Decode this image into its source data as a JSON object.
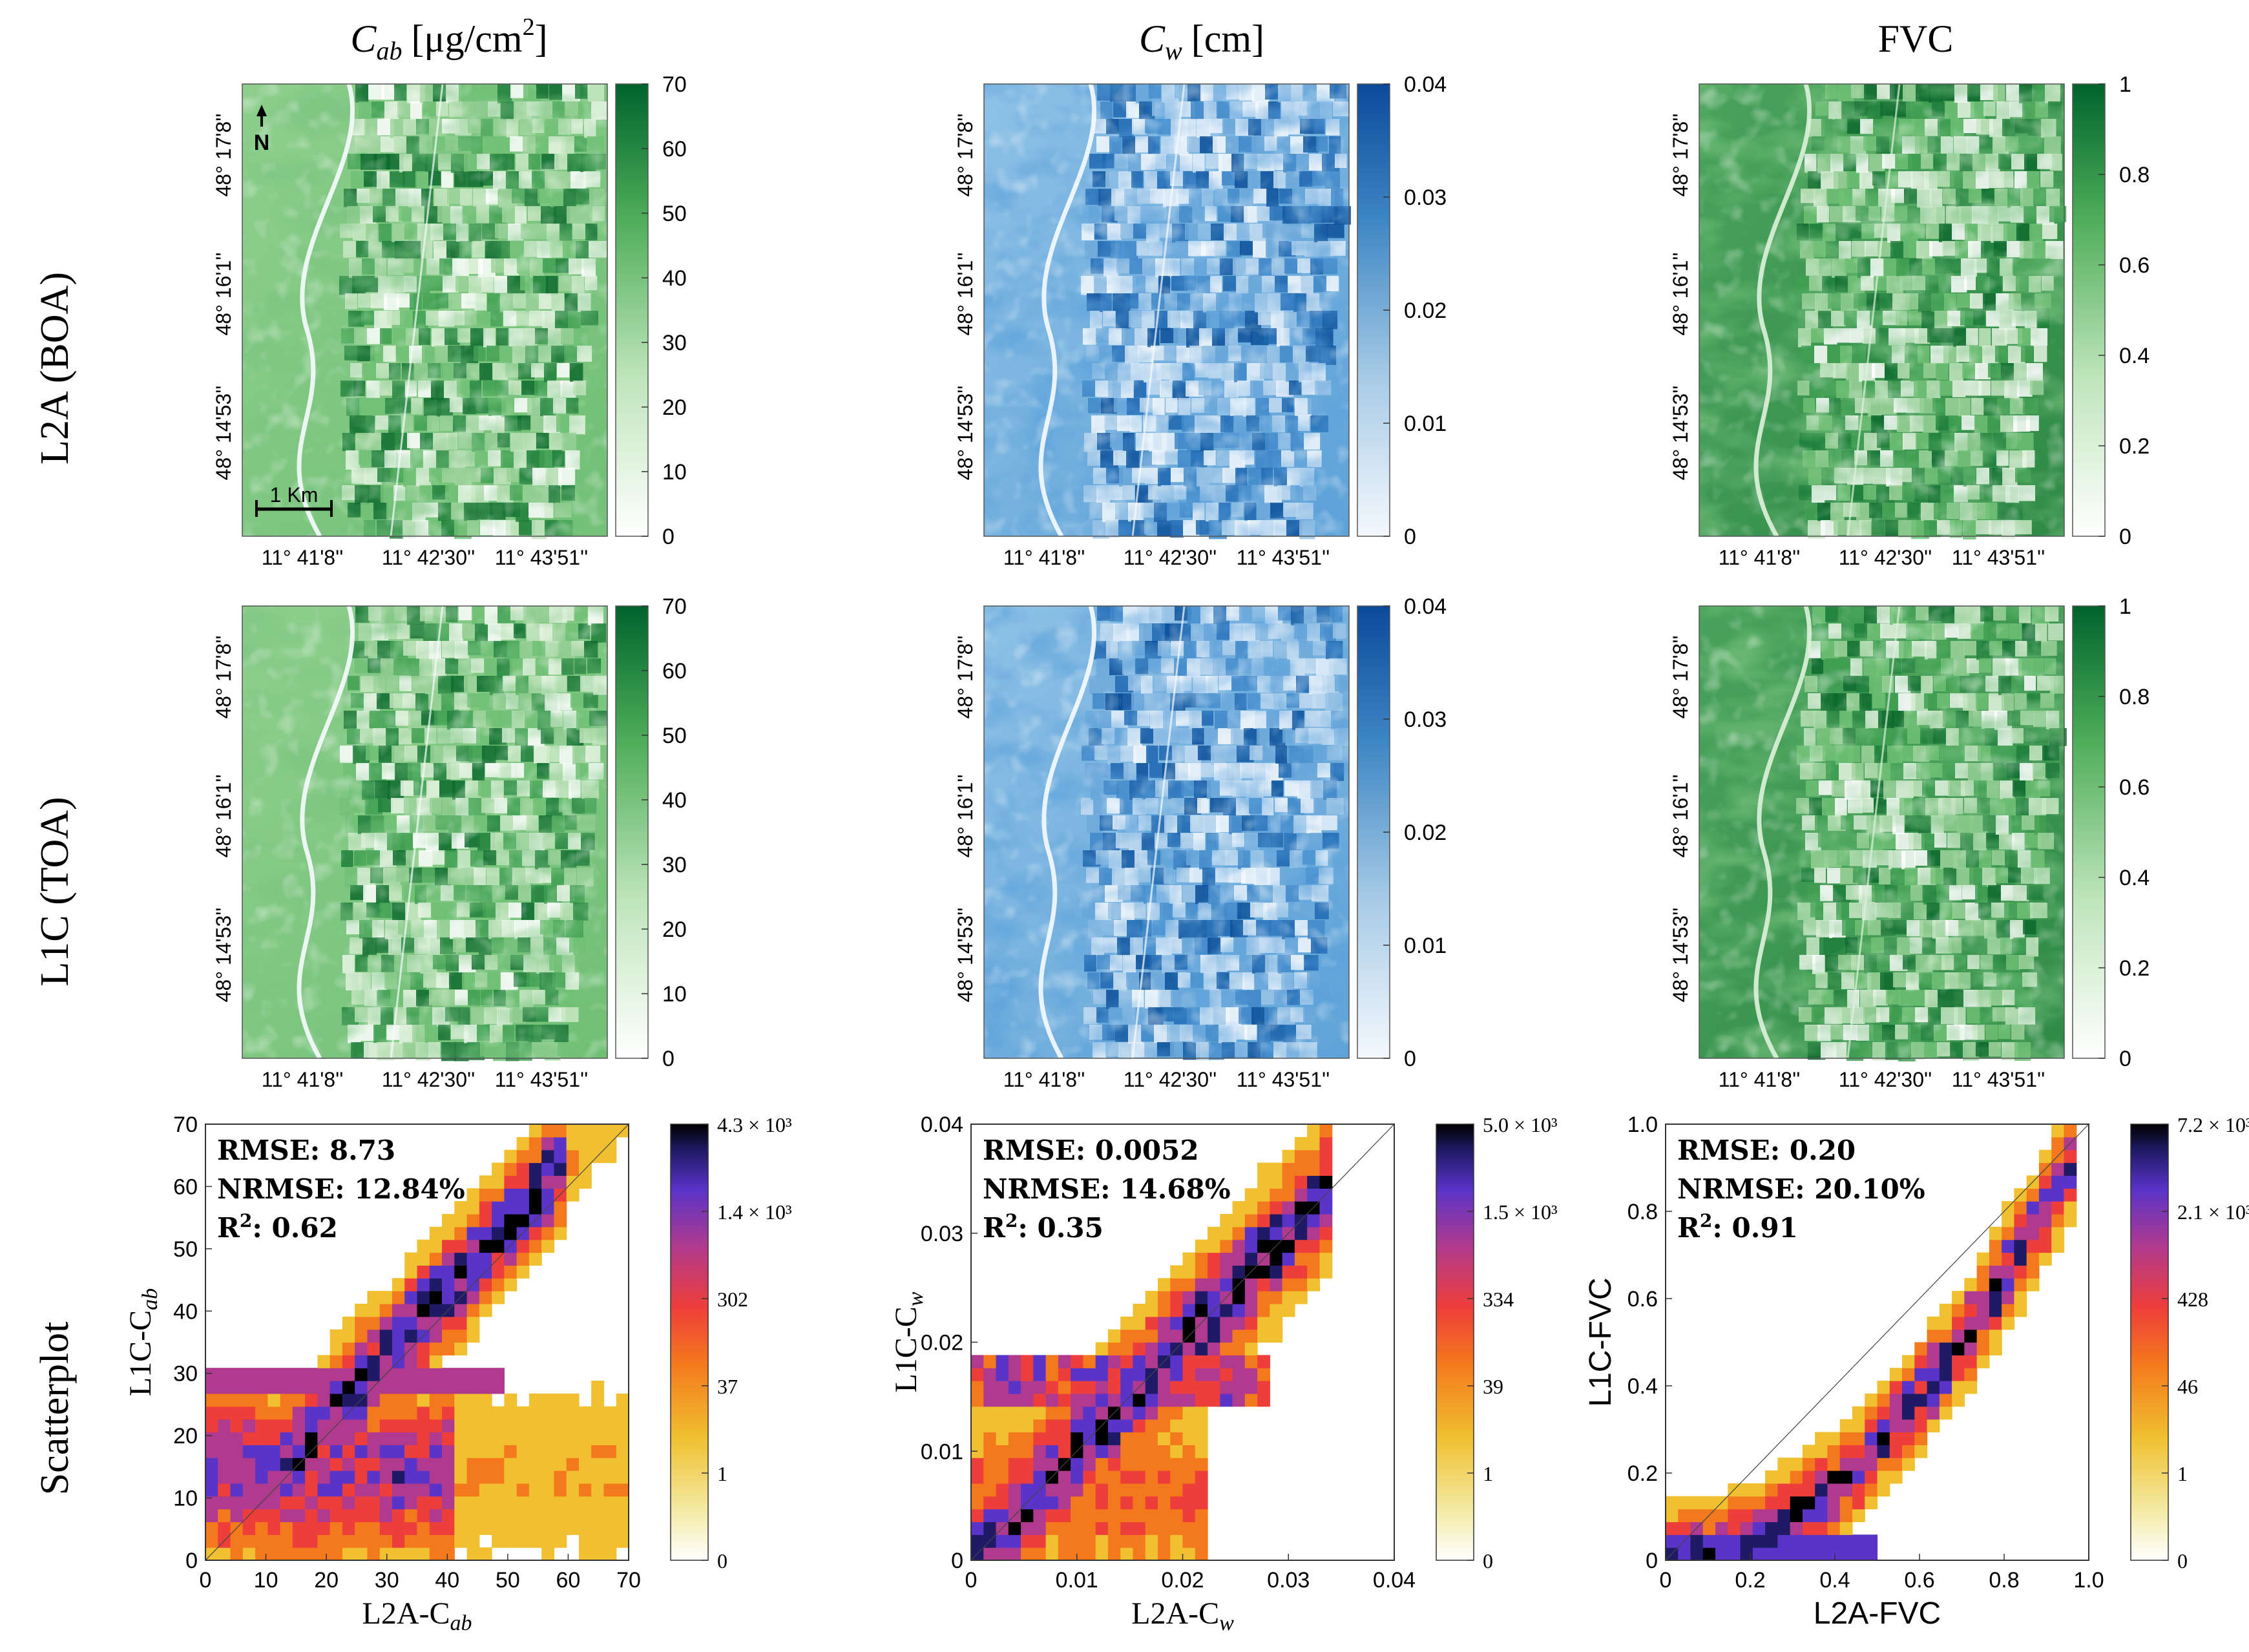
{
  "figure": {
    "column_headers": [
      {
        "name": "cab",
        "main": "C",
        "sub": "ab",
        "unit": "[μg/cm",
        "sup": "2",
        "close": "]"
      },
      {
        "name": "cw",
        "main": "C",
        "sub": "w",
        "unit": "[cm]",
        "sup": "",
        "close": ""
      },
      {
        "name": "fvc",
        "main": "FVC",
        "sub": "",
        "unit": "",
        "sup": "",
        "close": ""
      }
    ],
    "row_labels": [
      "L2A (BOA)",
      "L1C (TOA)",
      "Scatterplot"
    ],
    "map_axes": {
      "x_ticks": [
        "11° 41'8''",
        "11° 42'30''",
        "11° 43'51''"
      ],
      "y_ticks": [
        "48° 17'8''",
        "48° 16'1''",
        "48° 14'53''"
      ]
    },
    "north_label": "N",
    "scalebar_label": "1 Km",
    "map_colorbars": {
      "cab": {
        "ticks": [
          "0",
          "10",
          "20",
          "30",
          "40",
          "50",
          "60",
          "70"
        ],
        "low": "#ffffff",
        "high": "#00632c"
      },
      "cw": {
        "ticks": [
          "0",
          "0.01",
          "0.02",
          "0.03",
          "0.04"
        ],
        "low": "#f4f8fd",
        "high": "#0a4a9b"
      },
      "fvc": {
        "ticks": [
          "0",
          "0.2",
          "0.4",
          "0.6",
          "0.8",
          "1"
        ],
        "low": "#ffffff",
        "high": "#00632c"
      }
    },
    "density_colorbars": {
      "cab": {
        "ticks": [
          "0",
          "1",
          "37",
          "302",
          "1.4 × 10³",
          "4.3 × 10³"
        ]
      },
      "cw": {
        "ticks": [
          "0",
          "1",
          "39",
          "334",
          "1.5 × 10³",
          "5.0 × 10³"
        ]
      },
      "fvc": {
        "ticks": [
          "0",
          "1",
          "46",
          "428",
          "2.1 × 10³",
          "7.2 × 10³"
        ]
      }
    }
  },
  "chart_data": [
    {
      "type": "heatmap",
      "name": "scatter-cab",
      "xlabel_main": "L2A-C",
      "xlabel_sub": "ab",
      "ylabel_main": "L1C-C",
      "ylabel_sub": "ab",
      "xlim": [
        0,
        70
      ],
      "ylim": [
        0,
        70
      ],
      "x_ticks": [
        "0",
        "10",
        "20",
        "30",
        "40",
        "50",
        "60",
        "70"
      ],
      "y_ticks": [
        "0",
        "10",
        "20",
        "30",
        "40",
        "50",
        "60",
        "70"
      ],
      "stats": {
        "rmse": "RMSE: 8.73",
        "nrmse": "NRMSE: 12.84%",
        "r2_main": "R",
        "r2_sup": "2",
        "r2_value": ": 0.62"
      }
    },
    {
      "type": "heatmap",
      "name": "scatter-cw",
      "xlabel_main": "L2A-C",
      "xlabel_sub": "w",
      "ylabel_main": "L1C-C",
      "ylabel_sub": "w",
      "xlim": [
        0,
        0.04
      ],
      "ylim": [
        0,
        0.04
      ],
      "x_ticks": [
        "0",
        "0.01",
        "0.02",
        "0.03",
        "0.04"
      ],
      "y_ticks": [
        "0",
        "0.01",
        "0.02",
        "0.03",
        "0.04"
      ],
      "stats": {
        "rmse": "RMSE: 0.0052",
        "nrmse": "NRMSE: 14.68%",
        "r2_main": "R",
        "r2_sup": "2",
        "r2_value": ": 0.35"
      }
    },
    {
      "type": "heatmap",
      "name": "scatter-fvc",
      "xlabel_main": "L2A-FVC",
      "xlabel_sub": "",
      "ylabel_main": "L1C-FVC",
      "ylabel_sub": "",
      "xlim": [
        0,
        1
      ],
      "ylim": [
        0,
        1
      ],
      "x_ticks": [
        "0",
        "0.2",
        "0.4",
        "0.6",
        "0.8",
        "1.0"
      ],
      "y_ticks": [
        "0",
        "0.2",
        "0.4",
        "0.6",
        "0.8",
        "1.0"
      ],
      "stats": {
        "rmse": "RMSE: 0.20",
        "nrmse": "NRMSE: 20.10%",
        "r2_main": "R",
        "r2_sup": "2",
        "r2_value": ": 0.91"
      }
    }
  ]
}
